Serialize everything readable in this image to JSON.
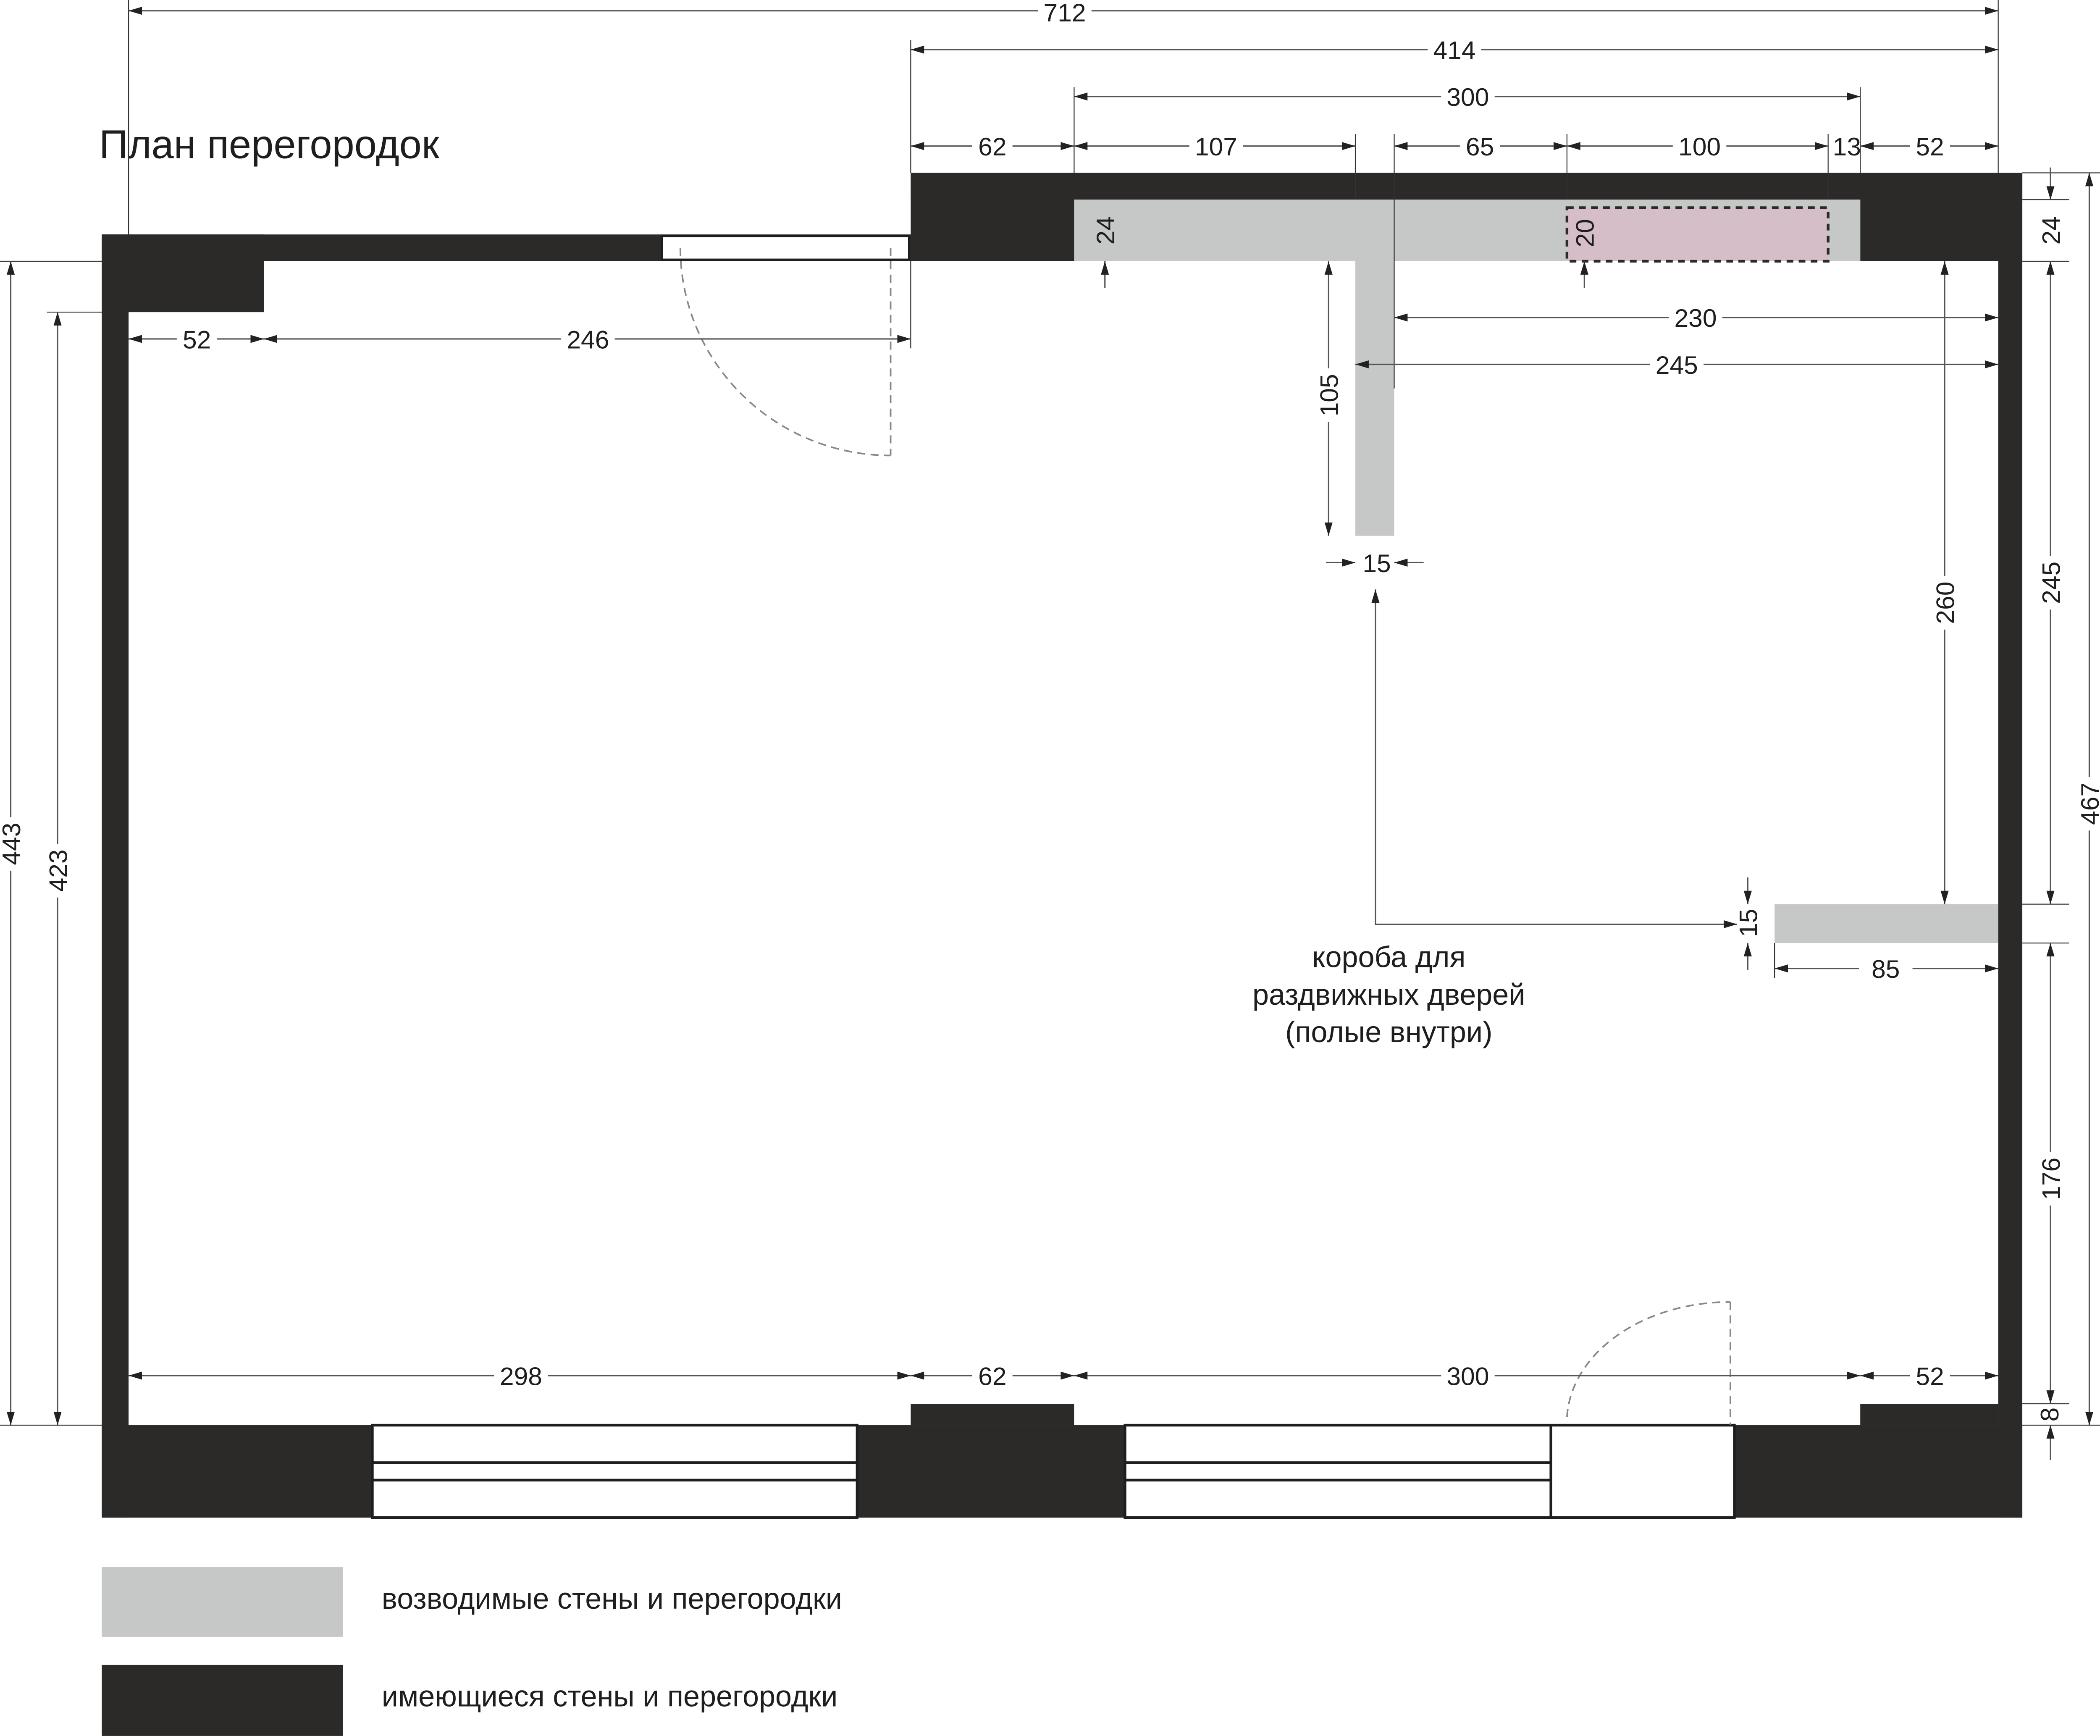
{
  "title": "План перегородок",
  "colors": {
    "existing_wall": "#2b2a28",
    "new_wall": "#c6c8c7",
    "sliding_box": "#d6bec9"
  },
  "dimensions": {
    "total_width": "712",
    "right_span": "414",
    "top_opening": "300",
    "top_62": "62",
    "top_107": "107",
    "top_65": "65",
    "top_100": "100",
    "top_13": "13",
    "top_52": "52",
    "left_52": "52",
    "left_246": "246",
    "inner_230": "230",
    "inner_245": "245",
    "partition_15": "15",
    "stub_85": "85",
    "bottom_298": "298",
    "bottom_62": "62",
    "bottom_300": "300",
    "bottom_52": "52",
    "left_443": "443",
    "left_423": "423",
    "wall_24": "24",
    "box_20": "20",
    "partition_105": "105",
    "inner_260": "260",
    "right_24": "24",
    "right_245": "245",
    "right_467": "467",
    "stub_15": "15",
    "right_176": "176",
    "right_8": "8"
  },
  "annotation": [
    "короба для",
    "раздвижных дверей",
    "(полые внутри)"
  ],
  "legend": [
    {
      "label": "возводимые стены и перегородки"
    },
    {
      "label": "имеющиеся стены и перегородки"
    }
  ]
}
